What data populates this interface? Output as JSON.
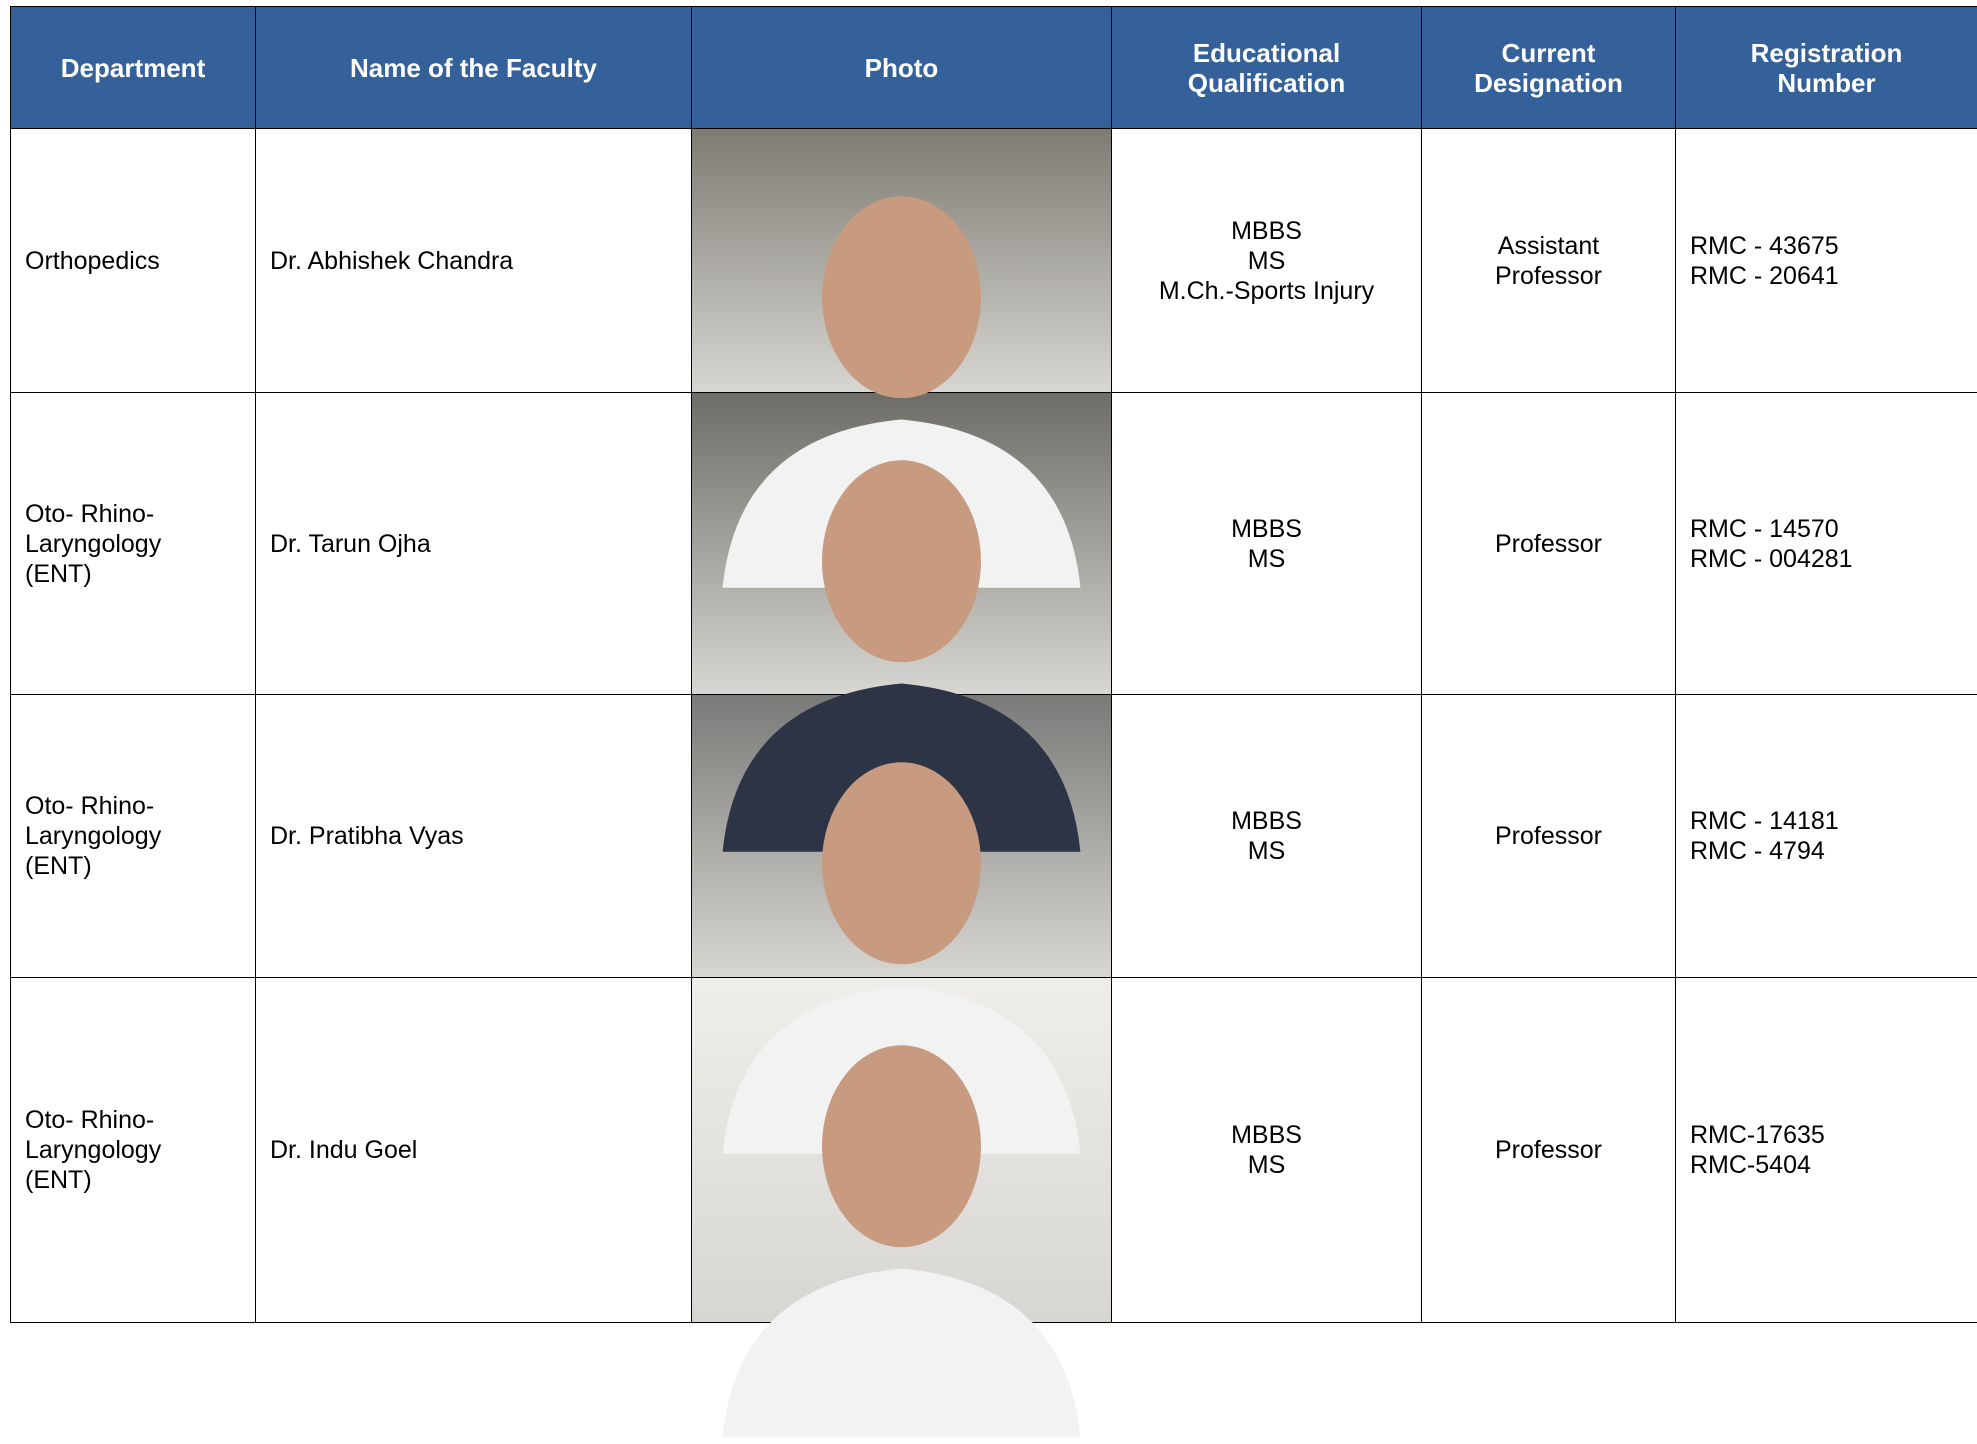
{
  "table": {
    "columns": [
      [
        "Department"
      ],
      [
        "Name of the Faculty"
      ],
      [
        "Photo"
      ],
      [
        "Educational",
        "Qualification"
      ],
      [
        "Current",
        "Designation"
      ],
      [
        "Registration",
        "Number"
      ]
    ],
    "rows": [
      {
        "department": [
          "Orthopedics"
        ],
        "name": "Dr. Abhishek Chandra",
        "qualification": [
          "MBBS",
          "MS",
          "M.Ch.-Sports Injury"
        ],
        "designation": [
          "Assistant",
          "Professor"
        ],
        "registration": [
          "RMC - 43675",
          "RMC - 20641"
        ]
      },
      {
        "department": [
          "Oto- Rhino-",
          "Laryngology",
          "(ENT)"
        ],
        "name": "Dr. Tarun Ojha",
        "qualification": [
          "MBBS",
          "MS"
        ],
        "designation": [
          "Professor"
        ],
        "registration": [
          "RMC - 14570",
          "RMC - 004281"
        ]
      },
      {
        "department": [
          "Oto- Rhino-",
          "Laryngology",
          "(ENT)"
        ],
        "name": "Dr. Pratibha Vyas",
        "qualification": [
          "MBBS",
          "MS"
        ],
        "designation": [
          "Professor"
        ],
        "registration": [
          "RMC - 14181",
          "RMC - 4794"
        ]
      },
      {
        "department": [
          "Oto- Rhino-",
          "Laryngology",
          "(ENT)"
        ],
        "name": "Dr. Indu Goel",
        "qualification": [
          "MBBS",
          "MS"
        ],
        "designation": [
          "Professor"
        ],
        "registration": [
          "RMC-17635",
          "RMC-5404"
        ]
      }
    ]
  }
}
